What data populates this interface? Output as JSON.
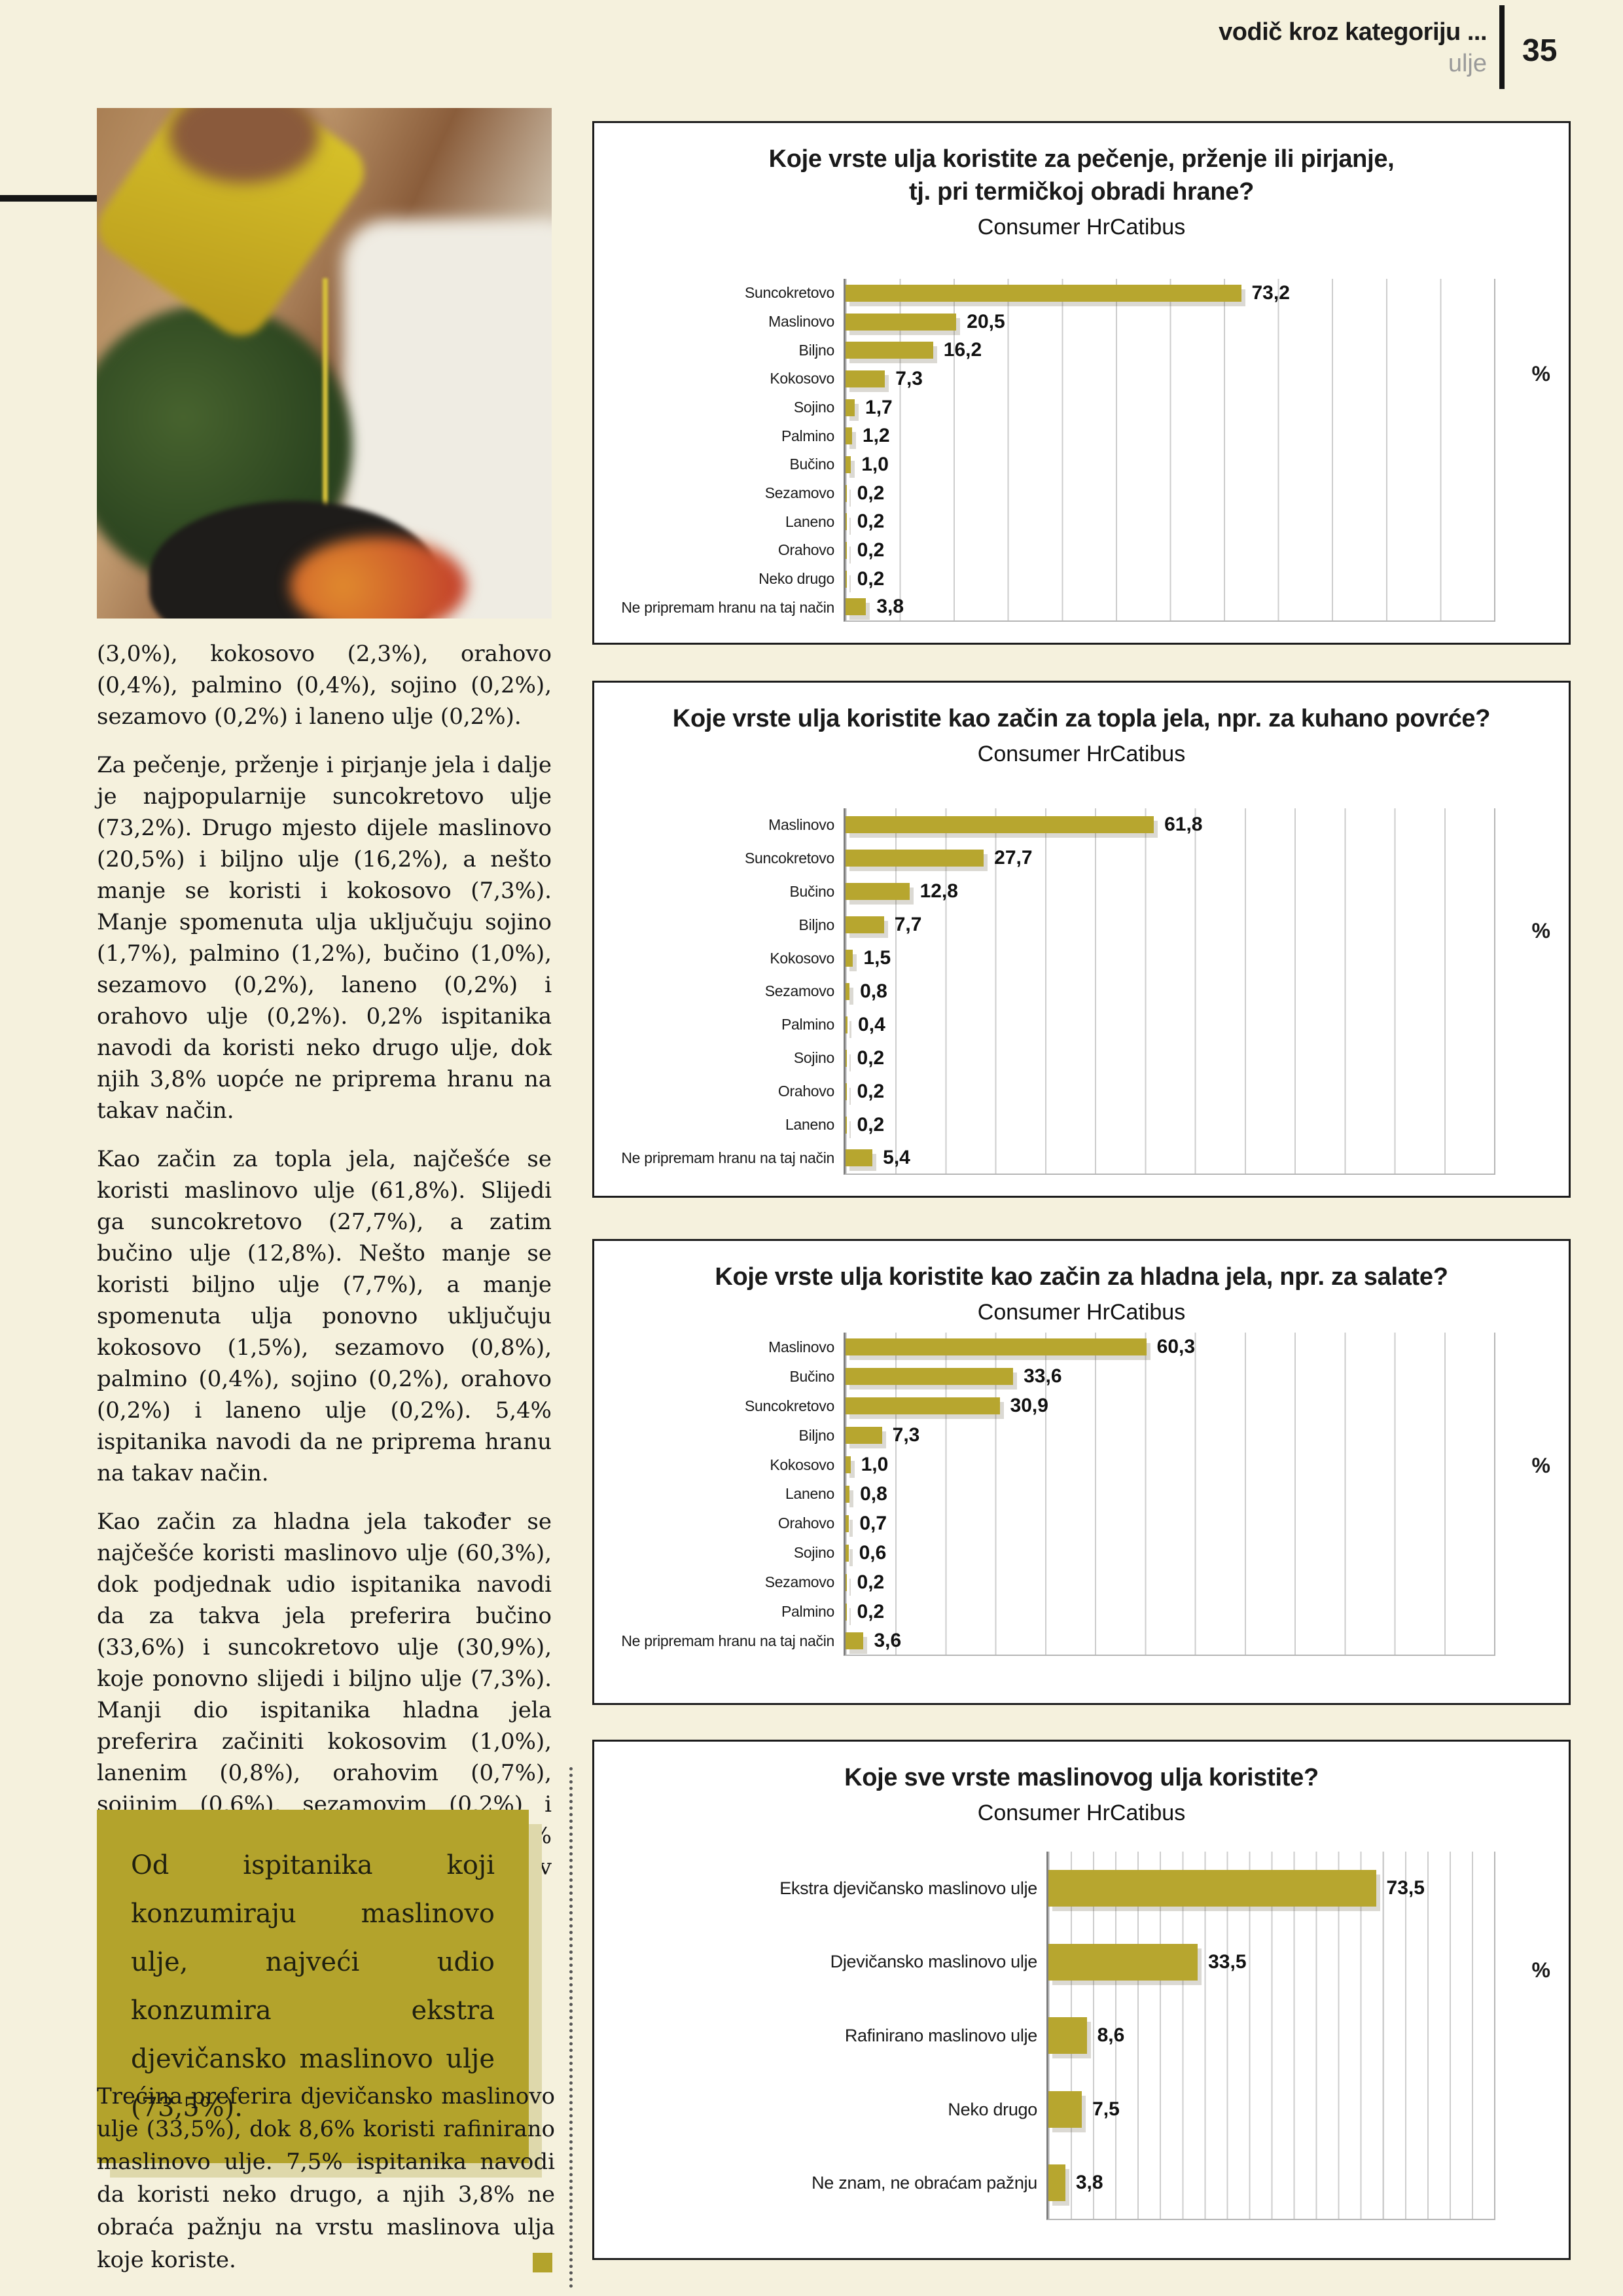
{
  "header": {
    "title": "vodič kroz kategoriju ...",
    "subtitle": "ulje",
    "page_number": "35"
  },
  "article": {
    "paragraphs": [
      "(3,0%), kokosovo (2,3%), orahovo (0,4%), palmino (0,4%), sojino (0,2%), sezamovo (0,2%) i laneno ulje (0,2%).",
      "Za pečenje, prženje i pirjanje jela i dalje je najpopularnije suncokretovo ulje (73,2%). Drugo mjesto dijele maslinovo (20,5%) i biljno ulje (16,2%), a nešto manje se koristi i kokosovo (7,3%). Manje spomenuta ulja uključuju sojino (1,7%), palmino (1,2%), bučino (1,0%), sezamovo (0,2%), laneno (0,2%) i orahovo ulje (0,2%). 0,2% ispitanika navodi da koristi neko drugo ulje, dok njih 3,8% uopće ne priprema hranu na takav način.",
      "Kao začin za topla jela, najčešće se koristi maslinovo ulje (61,8%). Slijedi ga suncokretovo (27,7%), a zatim bučino ulje (12,8%). Nešto manje se koristi biljno ulje (7,7%), a manje spomenuta ulja ponovno uključuju kokosovo (1,5%), sezamovo (0,8%), palmino (0,4%), sojino (0,2%), orahovo (0,2%) i laneno ulje (0,2%). 5,4% ispitanika navodi da ne priprema hranu na takav način.",
      "Kao začin za hladna jela također se najčešće koristi maslinovo ulje (60,3%), dok podjednak udio ispitanika navodi da za takva jela preferira bučino (33,6%) i suncokretovo ulje (30,9%), koje ponovno slijedi i biljno ulje (7,3%). Manji dio ispitanika hladna jela preferira začiniti kokosovim (1,0%), lanenim (0,8%), orahovim (0,7%), sojinim (0,6%), sezamovim (0,2%) i palminim uljem (0,2%), dok njih 3,6% hranu uopće ne priprema na takav način."
    ],
    "callout": "Od ispitanika koji konzumiraju maslinovo ulje, najveći udio konzumira ekstra djevičansko maslinovo ulje (73,5%).",
    "closing": "Trećina preferira djevičansko maslinovo ulje (33,5%), dok 8,6% koristi rafinirano maslinovo ulje. 7,5% ispitanika navodi da koristi neko drugo, a njih 3,8% ne obraća pažnju na vrstu maslinova ulja koje koriste."
  },
  "colors": {
    "accent_olive": "#b7a62f",
    "callout_bg": "#b3a32c",
    "callout_shadow": "#ded8ab",
    "page_bg": "#f5f1dd",
    "gridline": "#cdcdcd"
  },
  "chart_data": [
    {
      "type": "bar",
      "orientation": "horizontal",
      "title_lines": [
        "Koje vrste ulja koristite za pečenje, prženje ili  pirjanje,",
        "tj. pri termičkoj obradi hrane?"
      ],
      "subtitle": "Consumer HrCatibus",
      "unit": "%",
      "axis_max": 120,
      "grid_step": 10,
      "categories": [
        "Suncokretovo",
        "Maslinovo",
        "Biljno",
        "Kokosovo",
        "Sojino",
        "Palmino",
        "Bučino",
        "Sezamovo",
        "Laneno",
        "Orahovo",
        "Neko drugo",
        "Ne pripremam hranu na taj način"
      ],
      "values": [
        73.2,
        20.5,
        16.2,
        7.3,
        1.7,
        1.2,
        1.0,
        0.2,
        0.2,
        0.2,
        0.2,
        3.8
      ],
      "value_labels": [
        "73,2",
        "20,5",
        "16,2",
        "7,3",
        "1,7",
        "1,2",
        "1,0",
        "0,2",
        "0,2",
        "0,2",
        "0,2",
        "3,8"
      ]
    },
    {
      "type": "bar",
      "orientation": "horizontal",
      "title_lines": [
        "Koje vrste ulja koristite kao začin za topla jela, npr. za kuhano povrće?"
      ],
      "subtitle": "Consumer HrCatibus",
      "unit": "%",
      "axis_max": 130,
      "grid_step": 10,
      "categories": [
        "Maslinovo",
        "Suncokretovo",
        "Bučino",
        "Biljno",
        "Kokosovo",
        "Sezamovo",
        "Palmino",
        "Sojino",
        "Orahovo",
        "Laneno",
        "Ne pripremam hranu na taj način"
      ],
      "values": [
        61.8,
        27.7,
        12.8,
        7.7,
        1.5,
        0.8,
        0.4,
        0.2,
        0.2,
        0.2,
        5.4
      ],
      "value_labels": [
        "61,8",
        "27,7",
        "12,8",
        "7,7",
        "1,5",
        "0,8",
        "0,4",
        "0,2",
        "0,2",
        "0,2",
        "5,4"
      ]
    },
    {
      "type": "bar",
      "orientation": "horizontal",
      "title_lines": [
        "Koje vrste ulja koristite kao začin za hladna jela, npr. za salate?"
      ],
      "subtitle": "Consumer HrCatibus",
      "unit": "%",
      "axis_max": 130,
      "grid_step": 10,
      "categories": [
        "Maslinovo",
        "Bučino",
        "Suncokretovo",
        "Biljno",
        "Kokosovo",
        "Laneno",
        "Orahovo",
        "Sojino",
        "Sezamovo",
        "Palmino",
        "Ne pripremam hranu na taj način"
      ],
      "values": [
        60.3,
        33.6,
        30.9,
        7.3,
        1.0,
        0.8,
        0.7,
        0.6,
        0.2,
        0.2,
        3.6
      ],
      "value_labels": [
        "60,3",
        "33,6",
        "30,9",
        "7,3",
        "1,0",
        "0,8",
        "0,7",
        "0,6",
        "0,2",
        "0,2",
        "3,6"
      ]
    },
    {
      "type": "bar",
      "orientation": "horizontal",
      "title_lines": [
        "Koje sve vrste maslinovog ulja koristite?"
      ],
      "subtitle": "Consumer HrCatibus",
      "unit": "%",
      "axis_max": 100,
      "grid_step": 5,
      "categories": [
        "Ekstra djevičansko maslinovo ulje",
        "Djevičansko maslinovo ulje",
        "Rafinirano maslinovo ulje",
        "Neko drugo",
        "Ne znam, ne obraćam pažnju"
      ],
      "values": [
        73.5,
        33.5,
        8.6,
        7.5,
        3.8
      ],
      "value_labels": [
        "73,5",
        "33,5",
        "8,6",
        "7,5",
        "3,8"
      ]
    }
  ]
}
